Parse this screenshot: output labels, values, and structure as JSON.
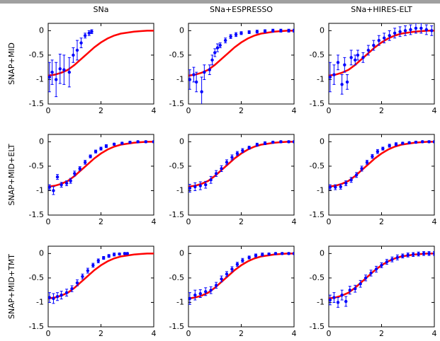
{
  "chart_data": [
    {
      "type": "line",
      "title": "SNa",
      "ylabel": "SNAP+MID",
      "xlim": [
        0,
        4
      ],
      "xticks": [
        0,
        2,
        4
      ],
      "ylim": [
        -1.5,
        0.15
      ],
      "yticks": [
        -1.5,
        -1,
        -0.5,
        0
      ],
      "series": [
        {
          "color": "#ff0000",
          "x": [
            0,
            0.25,
            0.5,
            0.75,
            1,
            1.25,
            1.5,
            1.75,
            2,
            2.25,
            2.5,
            2.75,
            3,
            3.25,
            3.5,
            3.75,
            4
          ],
          "values": [
            -0.92,
            -0.9,
            -0.86,
            -0.8,
            -0.7,
            -0.58,
            -0.46,
            -0.34,
            -0.24,
            -0.16,
            -0.1,
            -0.06,
            -0.04,
            -0.02,
            -0.01,
            0,
            0
          ]
        },
        {
          "color": "#0000ff",
          "x": [
            0.05,
            0.15,
            0.3,
            0.45,
            0.6,
            0.8,
            0.95,
            1.1,
            1.25,
            1.4,
            1.55,
            1.65
          ],
          "values": [
            -0.95,
            -0.85,
            -1.0,
            -0.78,
            -0.8,
            -0.85,
            -0.5,
            -0.4,
            -0.25,
            -0.1,
            -0.05,
            -0.02
          ],
          "errors": [
            0.3,
            0.25,
            0.35,
            0.3,
            0.3,
            0.3,
            0.15,
            0.2,
            0.1,
            0.05,
            0.05,
            0.04
          ]
        }
      ]
    },
    {
      "type": "line",
      "title": "SNa+ESPRESSO",
      "xlim": [
        0,
        4
      ],
      "xticks": [
        0,
        2,
        4
      ],
      "ylim": [
        -1.5,
        0.15
      ],
      "yticks": [
        -1.5,
        -1,
        -0.5,
        0
      ],
      "series": [
        {
          "color": "#ff0000",
          "x": [
            0,
            0.25,
            0.5,
            0.75,
            1,
            1.25,
            1.5,
            1.75,
            2,
            2.25,
            2.5,
            2.75,
            3,
            3.25,
            3.5,
            3.75,
            4
          ],
          "values": [
            -0.92,
            -0.9,
            -0.86,
            -0.8,
            -0.7,
            -0.58,
            -0.46,
            -0.34,
            -0.24,
            -0.16,
            -0.1,
            -0.06,
            -0.04,
            -0.02,
            -0.01,
            0,
            0
          ]
        },
        {
          "color": "#0000ff",
          "x": [
            0.05,
            0.2,
            0.3,
            0.5,
            0.6,
            0.8,
            0.9,
            1.0,
            1.1,
            1.2,
            1.4,
            1.6,
            1.8,
            2.0,
            2.3,
            2.6,
            2.9,
            3.2,
            3.5,
            3.8,
            4.0
          ],
          "values": [
            -1.0,
            -0.9,
            -1.05,
            -1.25,
            -0.85,
            -0.8,
            -0.6,
            -0.45,
            -0.35,
            -0.3,
            -0.2,
            -0.12,
            -0.08,
            -0.05,
            -0.03,
            -0.02,
            -0.01,
            0,
            0,
            0,
            0
          ],
          "errors": [
            0.2,
            0.15,
            0.2,
            0.3,
            0.15,
            0.1,
            0.1,
            0.08,
            0.08,
            0.05,
            0.05,
            0.04,
            0.04,
            0.03,
            0.03,
            0.03,
            0.03,
            0.03,
            0.03,
            0.03,
            0.03
          ]
        }
      ]
    },
    {
      "type": "line",
      "title": "SNa+HIRES-ELT",
      "xlim": [
        0,
        4
      ],
      "xticks": [
        0,
        2,
        4
      ],
      "ylim": [
        -1.5,
        0.15
      ],
      "yticks": [
        -1.5,
        -1,
        -0.5,
        0
      ],
      "series": [
        {
          "color": "#ff0000",
          "x": [
            0,
            0.25,
            0.5,
            0.75,
            1,
            1.25,
            1.5,
            1.75,
            2,
            2.25,
            2.5,
            2.75,
            3,
            3.25,
            3.5,
            3.75,
            4
          ],
          "values": [
            -0.92,
            -0.9,
            -0.86,
            -0.8,
            -0.7,
            -0.58,
            -0.46,
            -0.34,
            -0.24,
            -0.16,
            -0.1,
            -0.06,
            -0.04,
            -0.02,
            -0.01,
            0,
            0
          ]
        },
        {
          "color": "#0000ff",
          "x": [
            0.05,
            0.2,
            0.35,
            0.5,
            0.6,
            0.7,
            0.85,
            1.0,
            1.1,
            1.3,
            1.5,
            1.7,
            1.9,
            2.1,
            2.3,
            2.5,
            2.7,
            2.9,
            3.1,
            3.3,
            3.5,
            3.7,
            3.9
          ],
          "values": [
            -0.95,
            -0.9,
            -0.65,
            -1.1,
            -0.7,
            -1.05,
            -0.55,
            -0.6,
            -0.5,
            -0.55,
            -0.4,
            -0.3,
            -0.2,
            -0.15,
            -0.1,
            -0.05,
            -0.02,
            0,
            0.02,
            0.05,
            0.05,
            0.02,
            0
          ],
          "errors": [
            0.3,
            0.2,
            0.15,
            0.2,
            0.15,
            0.15,
            0.15,
            0.1,
            0.1,
            0.1,
            0.1,
            0.1,
            0.1,
            0.1,
            0.1,
            0.1,
            0.1,
            0.1,
            0.1,
            0.1,
            0.1,
            0.1,
            0.1
          ]
        }
      ]
    },
    {
      "type": "line",
      "ylabel": "SNAP+MID+ELT",
      "xlim": [
        0,
        4
      ],
      "xticks": [
        0,
        2,
        4
      ],
      "ylim": [
        -1.5,
        0.15
      ],
      "yticks": [
        -1.5,
        -1,
        -0.5,
        0
      ],
      "series": [
        {
          "color": "#ff0000",
          "x": [
            0,
            0.25,
            0.5,
            0.75,
            1,
            1.25,
            1.5,
            1.75,
            2,
            2.25,
            2.5,
            2.75,
            3,
            3.25,
            3.5,
            3.75,
            4
          ],
          "values": [
            -0.92,
            -0.9,
            -0.86,
            -0.8,
            -0.7,
            -0.58,
            -0.46,
            -0.34,
            -0.24,
            -0.16,
            -0.1,
            -0.06,
            -0.04,
            -0.02,
            -0.01,
            0,
            0
          ]
        },
        {
          "color": "#0000ff",
          "x": [
            0.05,
            0.2,
            0.35,
            0.5,
            0.7,
            0.85,
            1.0,
            1.2,
            1.4,
            1.6,
            1.8,
            2.0,
            2.2,
            2.5,
            2.8,
            3.1,
            3.4,
            3.7,
            4.0
          ],
          "values": [
            -0.93,
            -1.0,
            -0.72,
            -0.88,
            -0.85,
            -0.8,
            -0.65,
            -0.55,
            -0.42,
            -0.3,
            -0.2,
            -0.14,
            -0.09,
            -0.05,
            -0.03,
            -0.01,
            0,
            0,
            0
          ],
          "errors": [
            0.05,
            0.08,
            0.05,
            0.05,
            0.05,
            0.05,
            0.05,
            0.04,
            0.04,
            0.03,
            0.03,
            0.03,
            0.03,
            0.02,
            0.02,
            0.02,
            0.02,
            0.02,
            0.02
          ]
        }
      ]
    },
    {
      "type": "line",
      "xlim": [
        0,
        4
      ],
      "xticks": [
        0,
        2,
        4
      ],
      "ylim": [
        -1.5,
        0.15
      ],
      "yticks": [
        -1.5,
        -1,
        -0.5,
        0
      ],
      "series": [
        {
          "color": "#ff0000",
          "x": [
            0,
            0.25,
            0.5,
            0.75,
            1,
            1.25,
            1.5,
            1.75,
            2,
            2.25,
            2.5,
            2.75,
            3,
            3.25,
            3.5,
            3.75,
            4
          ],
          "values": [
            -0.92,
            -0.9,
            -0.86,
            -0.8,
            -0.7,
            -0.58,
            -0.46,
            -0.34,
            -0.24,
            -0.16,
            -0.1,
            -0.06,
            -0.04,
            -0.02,
            -0.01,
            0,
            0
          ]
        },
        {
          "color": "#0000ff",
          "x": [
            0.05,
            0.25,
            0.45,
            0.65,
            0.85,
            1.05,
            1.25,
            1.45,
            1.65,
            1.85,
            2.05,
            2.3,
            2.6,
            2.9,
            3.2,
            3.5,
            3.8,
            4.0
          ],
          "values": [
            -0.95,
            -0.92,
            -0.9,
            -0.88,
            -0.78,
            -0.65,
            -0.55,
            -0.42,
            -0.32,
            -0.24,
            -0.18,
            -0.12,
            -0.06,
            -0.03,
            -0.01,
            0,
            0,
            0
          ],
          "errors": [
            0.08,
            0.08,
            0.08,
            0.07,
            0.07,
            0.06,
            0.06,
            0.05,
            0.05,
            0.04,
            0.04,
            0.03,
            0.03,
            0.03,
            0.02,
            0.02,
            0.02,
            0.02
          ]
        }
      ]
    },
    {
      "type": "line",
      "xlim": [
        0,
        4
      ],
      "xticks": [
        0,
        2,
        4
      ],
      "ylim": [
        -1.5,
        0.15
      ],
      "yticks": [
        -1.5,
        -1,
        -0.5,
        0
      ],
      "series": [
        {
          "color": "#ff0000",
          "x": [
            0,
            0.25,
            0.5,
            0.75,
            1,
            1.25,
            1.5,
            1.75,
            2,
            2.25,
            2.5,
            2.75,
            3,
            3.25,
            3.5,
            3.75,
            4
          ],
          "values": [
            -0.92,
            -0.9,
            -0.86,
            -0.8,
            -0.7,
            -0.58,
            -0.46,
            -0.34,
            -0.24,
            -0.16,
            -0.1,
            -0.06,
            -0.04,
            -0.02,
            -0.01,
            0,
            0
          ]
        },
        {
          "color": "#0000ff",
          "x": [
            0.05,
            0.25,
            0.45,
            0.65,
            0.85,
            1.05,
            1.25,
            1.45,
            1.65,
            1.85,
            2.05,
            2.3,
            2.55,
            2.8,
            3.05,
            3.3,
            3.55,
            3.8,
            4.0
          ],
          "values": [
            -0.93,
            -0.93,
            -0.92,
            -0.85,
            -0.78,
            -0.68,
            -0.55,
            -0.42,
            -0.3,
            -0.2,
            -0.14,
            -0.08,
            -0.05,
            -0.03,
            -0.02,
            -0.01,
            0,
            0,
            0
          ],
          "errors": [
            0.05,
            0.05,
            0.05,
            0.05,
            0.05,
            0.05,
            0.05,
            0.04,
            0.04,
            0.04,
            0.03,
            0.03,
            0.03,
            0.02,
            0.02,
            0.02,
            0.02,
            0.02,
            0.02
          ]
        }
      ]
    },
    {
      "type": "line",
      "ylabel": "SNAP+MID+TMT",
      "xlim": [
        0,
        4
      ],
      "xticks": [
        0,
        2,
        4
      ],
      "ylim": [
        -1.5,
        0.15
      ],
      "yticks": [
        -1.5,
        -1,
        -0.5,
        0
      ],
      "series": [
        {
          "color": "#ff0000",
          "x": [
            0,
            0.25,
            0.5,
            0.75,
            1,
            1.25,
            1.5,
            1.75,
            2,
            2.25,
            2.5,
            2.75,
            3,
            3.25,
            3.5,
            3.75,
            4
          ],
          "values": [
            -0.92,
            -0.9,
            -0.86,
            -0.8,
            -0.7,
            -0.58,
            -0.46,
            -0.34,
            -0.24,
            -0.16,
            -0.1,
            -0.06,
            -0.04,
            -0.02,
            -0.01,
            0,
            0
          ]
        },
        {
          "color": "#0000ff",
          "x": [
            0.05,
            0.2,
            0.35,
            0.5,
            0.7,
            0.9,
            1.1,
            1.3,
            1.5,
            1.7,
            1.9,
            2.1,
            2.3,
            2.5,
            2.7,
            2.9,
            3.0
          ],
          "values": [
            -0.9,
            -0.92,
            -0.88,
            -0.85,
            -0.8,
            -0.72,
            -0.6,
            -0.47,
            -0.35,
            -0.24,
            -0.15,
            -0.09,
            -0.05,
            -0.02,
            -0.01,
            0,
            0
          ],
          "errors": [
            0.1,
            0.1,
            0.08,
            0.08,
            0.07,
            0.06,
            0.06,
            0.05,
            0.05,
            0.04,
            0.04,
            0.03,
            0.03,
            0.03,
            0.02,
            0.02,
            0.02
          ]
        }
      ]
    },
    {
      "type": "line",
      "xlim": [
        0,
        4
      ],
      "xticks": [
        0,
        2,
        4
      ],
      "ylim": [
        -1.5,
        0.15
      ],
      "yticks": [
        -1.5,
        -1,
        -0.5,
        0
      ],
      "series": [
        {
          "color": "#ff0000",
          "x": [
            0,
            0.25,
            0.5,
            0.75,
            1,
            1.25,
            1.5,
            1.75,
            2,
            2.25,
            2.5,
            2.75,
            3,
            3.25,
            3.5,
            3.75,
            4
          ],
          "values": [
            -0.92,
            -0.9,
            -0.86,
            -0.8,
            -0.7,
            -0.58,
            -0.46,
            -0.34,
            -0.24,
            -0.16,
            -0.1,
            -0.06,
            -0.04,
            -0.02,
            -0.01,
            0,
            0
          ]
        },
        {
          "color": "#0000ff",
          "x": [
            0.05,
            0.25,
            0.45,
            0.65,
            0.85,
            1.05,
            1.25,
            1.45,
            1.65,
            1.85,
            2.05,
            2.3,
            2.55,
            2.8,
            3.05,
            3.3,
            3.55,
            3.8,
            4.0
          ],
          "values": [
            -0.92,
            -0.85,
            -0.82,
            -0.78,
            -0.75,
            -0.65,
            -0.52,
            -0.42,
            -0.32,
            -0.22,
            -0.14,
            -0.08,
            -0.04,
            -0.02,
            -0.01,
            0,
            0,
            0,
            0
          ],
          "errors": [
            0.12,
            0.1,
            0.08,
            0.08,
            0.07,
            0.06,
            0.06,
            0.05,
            0.05,
            0.04,
            0.04,
            0.03,
            0.03,
            0.03,
            0.02,
            0.02,
            0.02,
            0.02,
            0.02
          ]
        }
      ]
    },
    {
      "type": "line",
      "xlim": [
        0,
        4
      ],
      "xticks": [
        0,
        2,
        4
      ],
      "ylim": [
        -1.5,
        0.15
      ],
      "yticks": [
        -1.5,
        -1,
        -0.5,
        0
      ],
      "series": [
        {
          "color": "#ff0000",
          "x": [
            0,
            0.25,
            0.5,
            0.75,
            1,
            1.25,
            1.5,
            1.75,
            2,
            2.25,
            2.5,
            2.75,
            3,
            3.25,
            3.5,
            3.75,
            4
          ],
          "values": [
            -0.92,
            -0.9,
            -0.86,
            -0.8,
            -0.7,
            -0.58,
            -0.46,
            -0.34,
            -0.24,
            -0.16,
            -0.1,
            -0.06,
            -0.04,
            -0.02,
            -0.01,
            0,
            0
          ]
        },
        {
          "color": "#0000ff",
          "x": [
            0.05,
            0.2,
            0.35,
            0.5,
            0.65,
            0.8,
            1.0,
            1.2,
            1.4,
            1.6,
            1.8,
            2.0,
            2.2,
            2.4,
            2.6,
            2.8,
            3.0,
            3.2,
            3.4,
            3.6,
            3.8,
            4.0
          ],
          "values": [
            -0.95,
            -0.9,
            -1.0,
            -0.85,
            -0.98,
            -0.75,
            -0.72,
            -0.62,
            -0.5,
            -0.4,
            -0.32,
            -0.24,
            -0.17,
            -0.12,
            -0.08,
            -0.05,
            -0.03,
            -0.02,
            -0.01,
            0,
            0,
            0
          ],
          "errors": [
            0.1,
            0.1,
            0.1,
            0.1,
            0.1,
            0.08,
            0.07,
            0.07,
            0.06,
            0.06,
            0.06,
            0.05,
            0.05,
            0.05,
            0.05,
            0.04,
            0.04,
            0.04,
            0.04,
            0.04,
            0.04,
            0.04
          ]
        }
      ]
    }
  ]
}
